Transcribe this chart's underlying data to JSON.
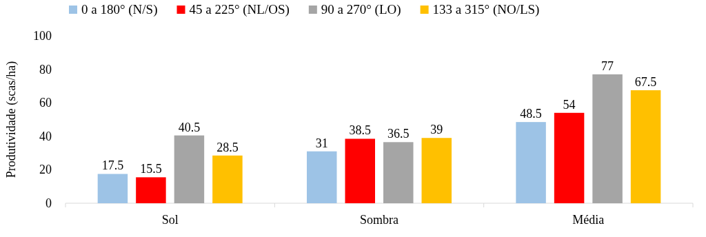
{
  "chart_data": {
    "type": "bar",
    "ylabel": "Produtividade (scas/ha)",
    "categories": [
      "Sol",
      "Sombra",
      "Média"
    ],
    "series": [
      {
        "name": "0 a 180° (N/S)",
        "color": "#9dc3e6",
        "values": [
          17.5,
          31,
          48.5
        ]
      },
      {
        "name": "45 a 225° (NL/OS)",
        "color": "#ff0000",
        "values": [
          15.5,
          38.5,
          54
        ]
      },
      {
        "name": "90 a 270° (LO)",
        "color": "#a5a5a5",
        "values": [
          40.5,
          36.5,
          77
        ]
      },
      {
        "name": "133 a 315° (NO/LS)",
        "color": "#ffc000",
        "values": [
          28.5,
          39,
          67.5
        ]
      }
    ],
    "ylim": [
      0,
      100
    ],
    "yticks": [
      0,
      20,
      40,
      60,
      80,
      100
    ],
    "data_labels": true,
    "legend": "top",
    "grid": false
  }
}
